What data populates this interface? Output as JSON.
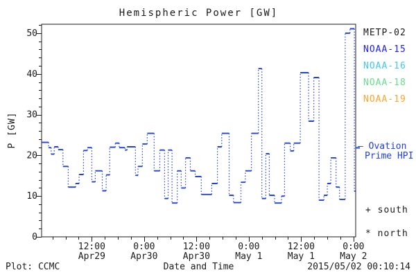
{
  "title": "Hemispheric Power [GW]",
  "y_axis": {
    "label": "P [GW]"
  },
  "x_axis": {
    "label": "Date and Time"
  },
  "legend": {
    "satellites": [
      {
        "label": "METP-02",
        "color": "#1a1a1a"
      },
      {
        "label": "NOAA-15",
        "color": "#1a1aff"
      },
      {
        "label": "NOAA-16",
        "color": "#3cc8f0"
      },
      {
        "label": "NOAA-18",
        "color": "#63e08c"
      },
      {
        "label": "NOAA-19",
        "color": "#ffa428"
      }
    ],
    "ovation": {
      "line1": "— Ovation",
      "line2": "Prime HPI",
      "color": "#2040e0"
    }
  },
  "markers": {
    "south": "+ south",
    "north": "* north"
  },
  "footer": {
    "plot_credit": "Plot: CCMC",
    "timestamp": "2015/05/02 00:10:14"
  },
  "chart_data": {
    "type": "line",
    "style": "stairstep: solid horizontal levels joined by dotted vertical connectors",
    "title": "Hemispheric Power [GW]",
    "xlabel": "Date and Time",
    "ylabel": "P [GW]",
    "ylim": [
      0,
      52.2
    ],
    "y_ticks": [
      0,
      10,
      20,
      30,
      40,
      50
    ],
    "y_minor_step": 2,
    "x_unit": "hours since 2015-04-29 00:00 UT",
    "xlim_hours": [
      0.5,
      72.5
    ],
    "x_minor_step_hours": 3,
    "x_ticks": [
      {
        "hour": 12,
        "time": "12:00",
        "date": "Apr29"
      },
      {
        "hour": 24,
        "time": "0:00",
        "date": "Apr30"
      },
      {
        "hour": 36,
        "time": "12:00",
        "date": "Apr30"
      },
      {
        "hour": 48,
        "time": "0:00",
        "date": "May 1"
      },
      {
        "hour": 60,
        "time": "12:00",
        "date": "May 1"
      },
      {
        "hour": 72,
        "time": "0:00",
        "date": "May 2"
      }
    ],
    "grid": false,
    "legend_position": "right",
    "hpi_axis_marker_gw": 21.9,
    "series": [
      {
        "name": "Ovation Prime HPI",
        "color": "#2040e0",
        "steps_hour_gw": [
          [
            0.5,
            23.2
          ],
          [
            2.1,
            21.9
          ],
          [
            2.7,
            20.3
          ],
          [
            3.4,
            22.1
          ],
          [
            4.3,
            21.4
          ],
          [
            5.4,
            17.3
          ],
          [
            6.6,
            12.2
          ],
          [
            8.3,
            13.1
          ],
          [
            9.1,
            15.3
          ],
          [
            10.1,
            21.2
          ],
          [
            11.0,
            21.9
          ],
          [
            12.0,
            13.5
          ],
          [
            12.8,
            16.2
          ],
          [
            14.4,
            11.3
          ],
          [
            15.3,
            15.2
          ],
          [
            16.1,
            22.0
          ],
          [
            17.4,
            23.0
          ],
          [
            18.3,
            21.9
          ],
          [
            19.6,
            21.3
          ],
          [
            20.1,
            22.1
          ],
          [
            22.0,
            15.1
          ],
          [
            22.6,
            17.3
          ],
          [
            23.6,
            22.8
          ],
          [
            24.7,
            25.4
          ],
          [
            26.3,
            16.2
          ],
          [
            27.6,
            21.3
          ],
          [
            28.7,
            9.4
          ],
          [
            29.5,
            21.3
          ],
          [
            30.4,
            8.3
          ],
          [
            31.6,
            16.2
          ],
          [
            32.5,
            12.0
          ],
          [
            33.5,
            19.4
          ],
          [
            34.6,
            16.2
          ],
          [
            35.7,
            14.8
          ],
          [
            37.1,
            10.4
          ],
          [
            39.5,
            13.1
          ],
          [
            40.8,
            22.1
          ],
          [
            41.8,
            25.4
          ],
          [
            43.5,
            10.2
          ],
          [
            44.5,
            8.4
          ],
          [
            46.2,
            13.4
          ],
          [
            47.2,
            16.2
          ],
          [
            48.6,
            25.4
          ],
          [
            50.2,
            41.3
          ],
          [
            51.0,
            9.4
          ],
          [
            51.9,
            20.4
          ],
          [
            52.7,
            10.2
          ],
          [
            53.9,
            8.3
          ],
          [
            55.5,
            10.0
          ],
          [
            56.2,
            23.0
          ],
          [
            57.5,
            21.1
          ],
          [
            58.3,
            23.0
          ],
          [
            59.8,
            40.3
          ],
          [
            61.7,
            28.4
          ],
          [
            62.9,
            39.1
          ],
          [
            64.1,
            9.0
          ],
          [
            65.2,
            10.2
          ],
          [
            66.0,
            13.1
          ],
          [
            66.8,
            19.4
          ],
          [
            68.0,
            12.2
          ],
          [
            68.8,
            9.2
          ],
          [
            70.1,
            50.0
          ],
          [
            71.2,
            51.1
          ],
          [
            72.2,
            11.2
          ]
        ],
        "x_end_hour": 72.5
      }
    ]
  }
}
